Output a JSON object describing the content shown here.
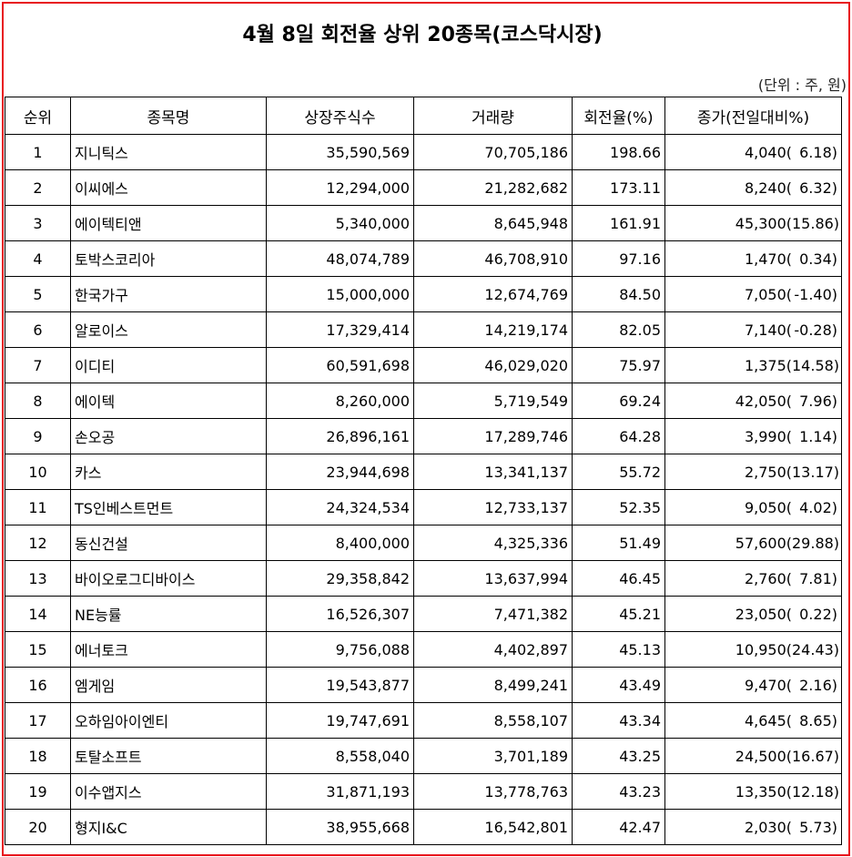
{
  "title": "4월 8일 회전율 상위 20종목(코스닥시장)",
  "unit_note": "(단위 : 주, 원)",
  "columns": [
    "순위",
    "종목명",
    "상장주식수",
    "거래량",
    "회전율(%)",
    "종가(전일대비%)"
  ],
  "rows": [
    {
      "rank": "1",
      "name": "지니틱스",
      "listed": "35,590,569",
      "volume": "70,705,186",
      "turnover": "198.66",
      "price": "4,040(",
      "change": "6.18)"
    },
    {
      "rank": "2",
      "name": "이씨에스",
      "listed": "12,294,000",
      "volume": "21,282,682",
      "turnover": "173.11",
      "price": "8,240(",
      "change": "6.32)"
    },
    {
      "rank": "3",
      "name": "에이텍티앤",
      "listed": "5,340,000",
      "volume": "8,645,948",
      "turnover": "161.91",
      "price": "45,300(",
      "change": "15.86)"
    },
    {
      "rank": "4",
      "name": "토박스코리아",
      "listed": "48,074,789",
      "volume": "46,708,910",
      "turnover": "97.16",
      "price": "1,470(",
      "change": "0.34)"
    },
    {
      "rank": "5",
      "name": "한국가구",
      "listed": "15,000,000",
      "volume": "12,674,769",
      "turnover": "84.50",
      "price": "7,050(",
      "change": "-1.40)"
    },
    {
      "rank": "6",
      "name": "알로이스",
      "listed": "17,329,414",
      "volume": "14,219,174",
      "turnover": "82.05",
      "price": "7,140(",
      "change": "-0.28)"
    },
    {
      "rank": "7",
      "name": "이디티",
      "listed": "60,591,698",
      "volume": "46,029,020",
      "turnover": "75.97",
      "price": "1,375(",
      "change": "14.58)"
    },
    {
      "rank": "8",
      "name": "에이텍",
      "listed": "8,260,000",
      "volume": "5,719,549",
      "turnover": "69.24",
      "price": "42,050(",
      "change": "7.96)"
    },
    {
      "rank": "9",
      "name": "손오공",
      "listed": "26,896,161",
      "volume": "17,289,746",
      "turnover": "64.28",
      "price": "3,990(",
      "change": "1.14)"
    },
    {
      "rank": "10",
      "name": "카스",
      "listed": "23,944,698",
      "volume": "13,341,137",
      "turnover": "55.72",
      "price": "2,750(",
      "change": "13.17)"
    },
    {
      "rank": "11",
      "name": "TS인베스트먼트",
      "listed": "24,324,534",
      "volume": "12,733,137",
      "turnover": "52.35",
      "price": "9,050(",
      "change": "4.02)"
    },
    {
      "rank": "12",
      "name": "동신건설",
      "listed": "8,400,000",
      "volume": "4,325,336",
      "turnover": "51.49",
      "price": "57,600(",
      "change": "29.88)"
    },
    {
      "rank": "13",
      "name": "바이오로그디바이스",
      "listed": "29,358,842",
      "volume": "13,637,994",
      "turnover": "46.45",
      "price": "2,760(",
      "change": "7.81)"
    },
    {
      "rank": "14",
      "name": "NE능률",
      "listed": "16,526,307",
      "volume": "7,471,382",
      "turnover": "45.21",
      "price": "23,050(",
      "change": "0.22)"
    },
    {
      "rank": "15",
      "name": "에너토크",
      "listed": "9,756,088",
      "volume": "4,402,897",
      "turnover": "45.13",
      "price": "10,950(",
      "change": "24.43)"
    },
    {
      "rank": "16",
      "name": "엠게임",
      "listed": "19,543,877",
      "volume": "8,499,241",
      "turnover": "43.49",
      "price": "9,470(",
      "change": "2.16)"
    },
    {
      "rank": "17",
      "name": "오하임아이엔티",
      "listed": "19,747,691",
      "volume": "8,558,107",
      "turnover": "43.34",
      "price": "4,645(",
      "change": "8.65)"
    },
    {
      "rank": "18",
      "name": "토탈소프트",
      "listed": "8,558,040",
      "volume": "3,701,189",
      "turnover": "43.25",
      "price": "24,500(",
      "change": "16.67)"
    },
    {
      "rank": "19",
      "name": "이수앱지스",
      "listed": "31,871,193",
      "volume": "13,778,763",
      "turnover": "43.23",
      "price": "13,350(",
      "change": "12.18)"
    },
    {
      "rank": "20",
      "name": "형지I&C",
      "listed": "38,955,668",
      "volume": "16,542,801",
      "turnover": "42.47",
      "price": "2,030(",
      "change": "5.73)"
    }
  ],
  "colors": {
    "frame_border": "#e8141c",
    "text": "#000000",
    "grid_line": "#000000"
  }
}
